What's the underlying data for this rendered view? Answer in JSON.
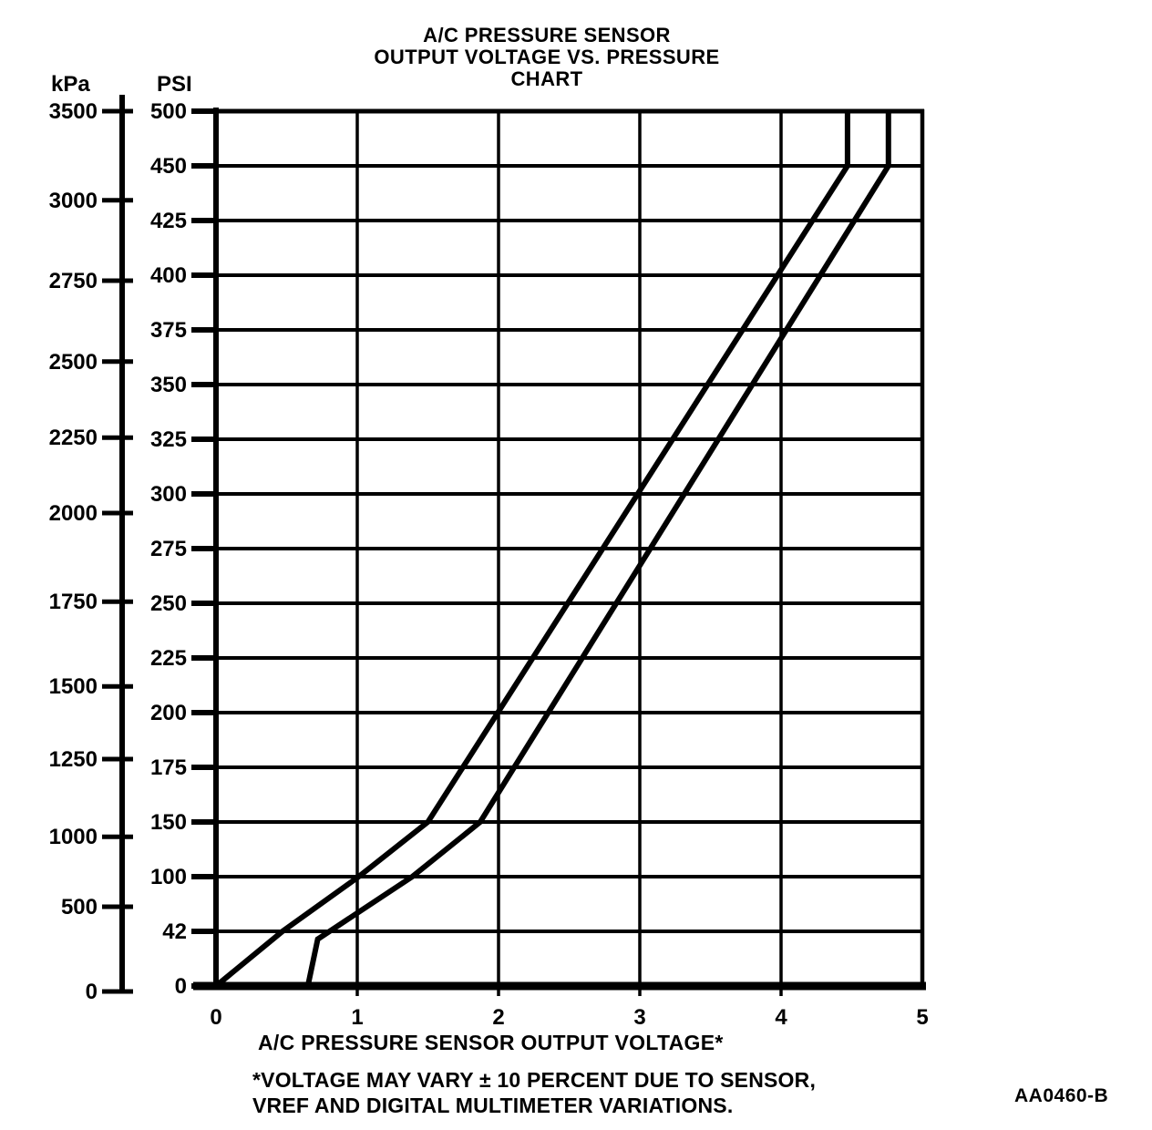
{
  "figure": {
    "title_line1": "A/C PRESSURE SENSOR",
    "title_line2": "OUTPUT VOLTAGE VS. PRESSURE",
    "title_line3": "CHART",
    "left_axis_unit": "kPa",
    "right_axis_unit": "PSI",
    "x_axis_caption": "A/C PRESSURE SENSOR OUTPUT VOLTAGE*",
    "footnote_line1": "*VOLTAGE MAY VARY ± 10 PERCENT DUE TO SENSOR,",
    "footnote_line2": "VREF AND DIGITAL MULTIMETER VARIATIONS.",
    "figure_code": "AA0460-B"
  },
  "chart_data": {
    "type": "line",
    "title": "A/C PRESSURE SENSOR OUTPUT VOLTAGE VS. PRESSURE CHART",
    "xlabel": "A/C PRESSURE SENSOR OUTPUT VOLTAGE*",
    "ylabel_left": "kPa",
    "ylabel_right": "PSI",
    "xlim": [
      0,
      5
    ],
    "x_ticks": [
      0,
      1,
      2,
      3,
      4,
      5
    ],
    "grid": true,
    "legend": "none",
    "psi_ticks": [
      0,
      42,
      100,
      150,
      175,
      200,
      225,
      250,
      275,
      300,
      325,
      350,
      375,
      400,
      425,
      450,
      500
    ],
    "kpa_ticks": [
      {
        "label": "3500",
        "pos": 16
      },
      {
        "label": "3000",
        "pos": 14.37
      },
      {
        "label": "2750",
        "pos": 12.9
      },
      {
        "label": "2500",
        "pos": 11.42
      },
      {
        "label": "2250",
        "pos": 10.03
      },
      {
        "label": "2000",
        "pos": 8.65
      },
      {
        "label": "1750",
        "pos": 7.03
      },
      {
        "label": "1500",
        "pos": 5.48
      },
      {
        "label": "1250",
        "pos": 4.15
      },
      {
        "label": "1000",
        "pos": 2.73
      },
      {
        "label": "500",
        "pos": 1.45
      },
      {
        "label": "0",
        "pos": -0.1
      }
    ],
    "series": [
      {
        "name": "upper-tolerance-line",
        "points_volts_psi": [
          [
            0,
            0
          ],
          [
            0.47,
            42
          ],
          [
            1.01,
            100
          ],
          [
            1.5,
            150
          ],
          [
            4.47,
            450
          ],
          [
            4.47,
            500
          ]
        ]
      },
      {
        "name": "lower-tolerance-line",
        "points_volts_psi": [
          [
            0.65,
            0
          ],
          [
            0.72,
            36
          ],
          [
            1.39,
            100
          ],
          [
            1.87,
            150
          ],
          [
            4.76,
            450
          ],
          [
            4.76,
            500
          ]
        ]
      }
    ],
    "line_color": "#000000",
    "background_color": "#ffffff"
  }
}
